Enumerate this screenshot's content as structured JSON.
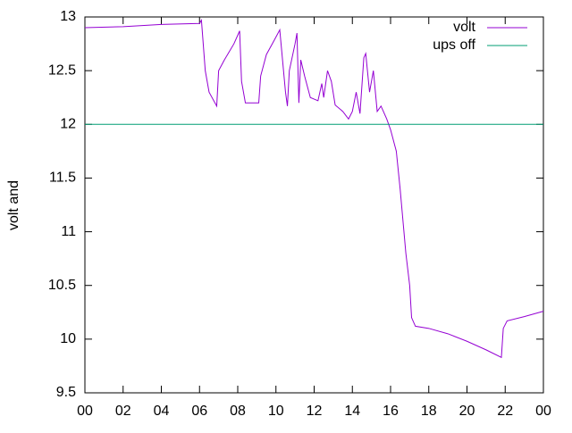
{
  "chart_data": {
    "type": "line",
    "ylabel": "volt and",
    "xlim": [
      0,
      24
    ],
    "xticks": [
      {
        "value": 0,
        "label": "00"
      },
      {
        "value": 2,
        "label": "02"
      },
      {
        "value": 4,
        "label": "04"
      },
      {
        "value": 6,
        "label": "06"
      },
      {
        "value": 8,
        "label": "08"
      },
      10,
      12,
      14,
      16,
      18,
      20,
      22,
      {
        "value": 24,
        "label": "00"
      }
    ],
    "ylim": [
      9.5,
      13
    ],
    "yticks": [
      9.5,
      10,
      10.5,
      11,
      11.5,
      12,
      12.5,
      13
    ],
    "legend": "top-right",
    "series": [
      {
        "name": "volt",
        "color": "#9400d3",
        "x": [
          0,
          2,
          4,
          6,
          6.1,
          6.3,
          6.5,
          6.9,
          7.0,
          7.3,
          7.8,
          8.1,
          8.2,
          8.4,
          8.8,
          9.1,
          9.2,
          9.5,
          9.9,
          10.2,
          10.5,
          10.6,
          10.7,
          11.0,
          11.1,
          11.2,
          11.3,
          11.5,
          11.8,
          12.2,
          12.4,
          12.5,
          12.7,
          12.9,
          13.1,
          13.5,
          13.8,
          14.0,
          14.2,
          14.4,
          14.6,
          14.7,
          14.9,
          15.1,
          15.3,
          15.5,
          15.8,
          16.0,
          16.3,
          16.5,
          16.8,
          17.0,
          17.1,
          17.3,
          18,
          19,
          20,
          21,
          21.8,
          21.9,
          22.1,
          23,
          24
        ],
        "values": [
          12.9,
          12.91,
          12.93,
          12.94,
          12.97,
          12.5,
          12.3,
          12.17,
          12.5,
          12.6,
          12.75,
          12.87,
          12.4,
          12.2,
          12.2,
          12.2,
          12.45,
          12.65,
          12.78,
          12.88,
          12.3,
          12.17,
          12.5,
          12.75,
          12.85,
          12.2,
          12.6,
          12.45,
          12.25,
          12.22,
          12.38,
          12.25,
          12.5,
          12.4,
          12.18,
          12.12,
          12.05,
          12.12,
          12.3,
          12.1,
          12.62,
          12.66,
          12.3,
          12.5,
          12.12,
          12.17,
          12.05,
          11.95,
          11.75,
          11.4,
          10.8,
          10.5,
          10.2,
          10.12,
          10.1,
          10.05,
          9.98,
          9.9,
          9.83,
          10.1,
          10.17,
          10.21,
          10.26
        ]
      },
      {
        "name": "ups off",
        "color": "#009e73",
        "x": [
          0,
          24
        ],
        "values": [
          12,
          12
        ]
      }
    ]
  }
}
